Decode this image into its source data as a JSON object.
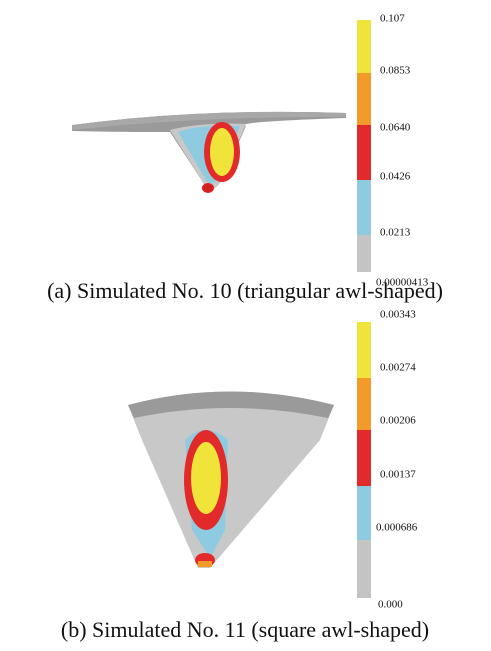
{
  "panels": [
    {
      "caption": "(a) Simulated No. 10 (triangular awl-shaped)",
      "legend_labels": [
        "0.107",
        "0.0853",
        "0.0640",
        "0.0426",
        "0.0213",
        "0.00000413"
      ]
    },
    {
      "caption": "(b) Simulated No. 11 (square awl-shaped)",
      "legend_labels": [
        "0.00343",
        "0.00274",
        "0.00206",
        "0.00137",
        "0.000686",
        "0.000"
      ]
    }
  ]
}
